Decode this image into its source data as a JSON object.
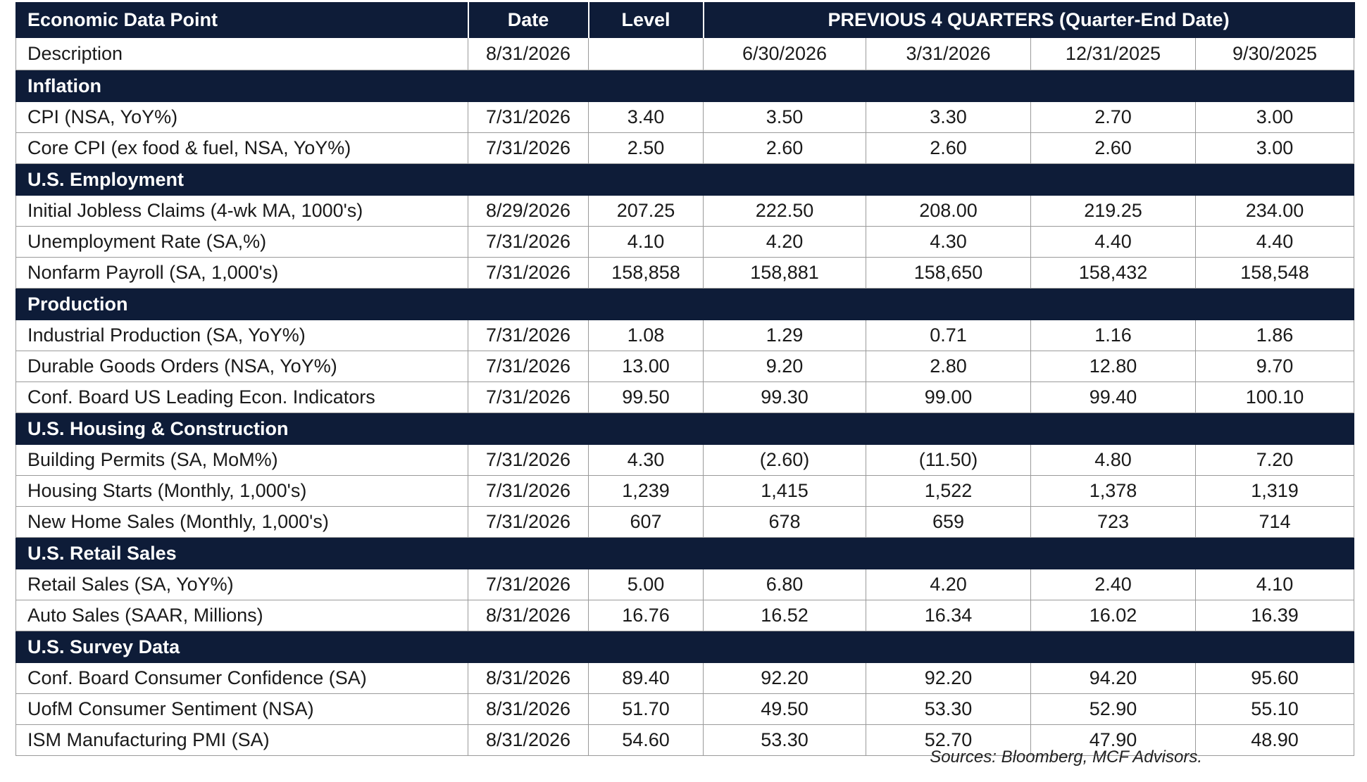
{
  "header": {
    "col_item": "Economic Data Point",
    "col_date": "Date",
    "col_level": "Level",
    "col_previous": "PREVIOUS 4 QUARTERS (Quarter-End Date)"
  },
  "description_row": {
    "label": "Description",
    "date": "8/31/2026",
    "level": "",
    "quarters": [
      "6/30/2026",
      "3/31/2026",
      "12/31/2025",
      "9/30/2025"
    ]
  },
  "sections": [
    {
      "title": "Inflation",
      "rows": [
        {
          "name": "CPI (NSA, YoY%)",
          "date": "7/31/2026",
          "level": "3.40",
          "q": [
            "3.50",
            "3.30",
            "2.70",
            "3.00"
          ]
        },
        {
          "name": "Core CPI (ex food & fuel, NSA, YoY%)",
          "date": "7/31/2026",
          "level": "2.50",
          "q": [
            "2.60",
            "2.60",
            "2.60",
            "3.00"
          ]
        }
      ]
    },
    {
      "title": "U.S. Employment",
      "rows": [
        {
          "name": "Initial Jobless Claims (4-wk MA, 1000's)",
          "date": "8/29/2026",
          "level": "207.25",
          "q": [
            "222.50",
            "208.00",
            "219.25",
            "234.00"
          ]
        },
        {
          "name": "Unemployment Rate (SA,%)",
          "date": "7/31/2026",
          "level": "4.10",
          "q": [
            "4.20",
            "4.30",
            "4.40",
            "4.40"
          ]
        },
        {
          "name": "Nonfarm Payroll (SA, 1,000's)",
          "date": "7/31/2026",
          "level": "158,858",
          "q": [
            "158,881",
            "158,650",
            "158,432",
            "158,548"
          ]
        }
      ]
    },
    {
      "title": "Production",
      "rows": [
        {
          "name": "Industrial Production (SA, YoY%)",
          "date": "7/31/2026",
          "level": "1.08",
          "q": [
            "1.29",
            "0.71",
            "1.16",
            "1.86"
          ]
        },
        {
          "name": "Durable Goods Orders (NSA, YoY%)",
          "date": "7/31/2026",
          "level": "13.00",
          "q": [
            "9.20",
            "2.80",
            "12.80",
            "9.70"
          ]
        },
        {
          "name": "Conf. Board US Leading Econ. Indicators",
          "date": "7/31/2026",
          "level": "99.50",
          "q": [
            "99.30",
            "99.00",
            "99.40",
            "100.10"
          ]
        }
      ]
    },
    {
      "title": "U.S. Housing & Construction",
      "rows": [
        {
          "name": "Building Permits (SA, MoM%)",
          "date": "7/31/2026",
          "level": "4.30",
          "q": [
            "(2.60)",
            "(11.50)",
            "4.80",
            "7.20"
          ]
        },
        {
          "name": "Housing Starts (Monthly, 1,000's)",
          "date": "7/31/2026",
          "level": "1,239",
          "q": [
            "1,415",
            "1,522",
            "1,378",
            "1,319"
          ]
        },
        {
          "name": "New Home Sales (Monthly, 1,000's)",
          "date": "7/31/2026",
          "level": "607",
          "q": [
            "678",
            "659",
            "723",
            "714"
          ]
        }
      ]
    },
    {
      "title": "U.S. Retail Sales",
      "rows": [
        {
          "name": "Retail Sales (SA, YoY%)",
          "date": "7/31/2026",
          "level": "5.00",
          "q": [
            "6.80",
            "4.20",
            "2.40",
            "4.10"
          ]
        },
        {
          "name": "Auto Sales (SAAR, Millions)",
          "date": "8/31/2026",
          "level": "16.76",
          "q": [
            "16.52",
            "16.34",
            "16.02",
            "16.39"
          ]
        }
      ]
    },
    {
      "title": "U.S. Survey Data",
      "rows": [
        {
          "name": "Conf. Board Consumer Confidence (SA)",
          "date": "8/31/2026",
          "level": "89.40",
          "q": [
            "92.20",
            "92.20",
            "94.20",
            "95.60"
          ]
        },
        {
          "name": "UofM Consumer Sentiment (NSA)",
          "date": "8/31/2026",
          "level": "51.70",
          "q": [
            "49.50",
            "53.30",
            "52.90",
            "55.10"
          ]
        },
        {
          "name": "ISM Manufacturing PMI (SA)",
          "date": "8/31/2026",
          "level": "54.60",
          "q": [
            "53.30",
            "52.70",
            "47.90",
            "48.90"
          ]
        }
      ]
    }
  ],
  "footer": {
    "sources": "Sources: Bloomberg, MCF Advisors."
  }
}
